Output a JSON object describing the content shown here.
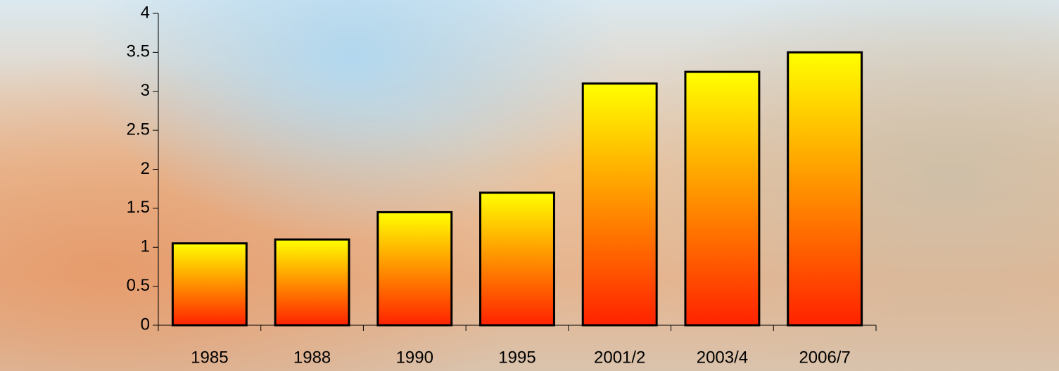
{
  "chart_data": {
    "type": "bar",
    "categories": [
      "1985",
      "1988",
      "1990",
      "1995",
      "2001/2",
      "2003/4",
      "2006/7"
    ],
    "values": [
      1.05,
      1.1,
      1.45,
      1.7,
      3.1,
      3.25,
      3.5
    ],
    "color": [
      "#ffff00",
      "#ff2200"
    ],
    "ylim": [
      0,
      4
    ],
    "yticks": [
      0,
      0.5,
      1,
      1.5,
      2,
      2.5,
      3,
      3.5,
      4
    ],
    "grid": false
  }
}
